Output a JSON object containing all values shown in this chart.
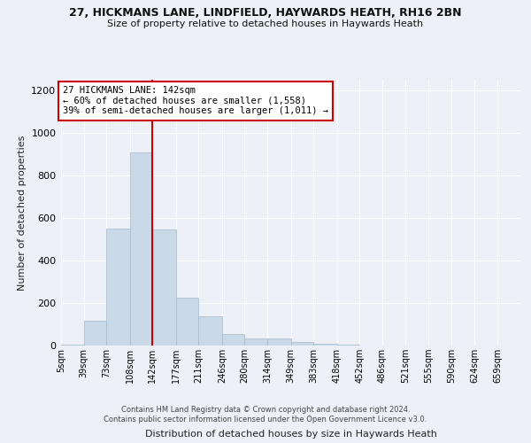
{
  "title_line1": "27, HICKMANS LANE, LINDFIELD, HAYWARDS HEATH, RH16 2BN",
  "title_line2": "Size of property relative to detached houses in Haywards Heath",
  "xlabel": "Distribution of detached houses by size in Haywards Heath",
  "ylabel": "Number of detached properties",
  "bar_edges": [
    5,
    39,
    73,
    108,
    142,
    177,
    211,
    246,
    280,
    314,
    349,
    383,
    418,
    452,
    486,
    521,
    555,
    590,
    624,
    659,
    693
  ],
  "bar_heights": [
    5,
    115,
    550,
    910,
    545,
    225,
    138,
    55,
    35,
    35,
    18,
    10,
    5,
    0,
    0,
    0,
    0,
    0,
    0,
    0
  ],
  "bar_color": "#c9d9e8",
  "bar_edgecolor": "#a0b8cc",
  "property_size": 142,
  "vline_color": "#cc0000",
  "annotation_text": "27 HICKMANS LANE: 142sqm\n← 60% of detached houses are smaller (1,558)\n39% of semi-detached houses are larger (1,011) →",
  "annotation_box_edgecolor": "#cc0000",
  "annotation_box_facecolor": "#ffffff",
  "ylim": [
    0,
    1250
  ],
  "yticks": [
    0,
    200,
    400,
    600,
    800,
    1000,
    1200
  ],
  "footnote": "Contains HM Land Registry data © Crown copyright and database right 2024.\nContains public sector information licensed under the Open Government Licence v3.0.",
  "background_color": "#edf1f7",
  "grid_color": "#ffffff"
}
